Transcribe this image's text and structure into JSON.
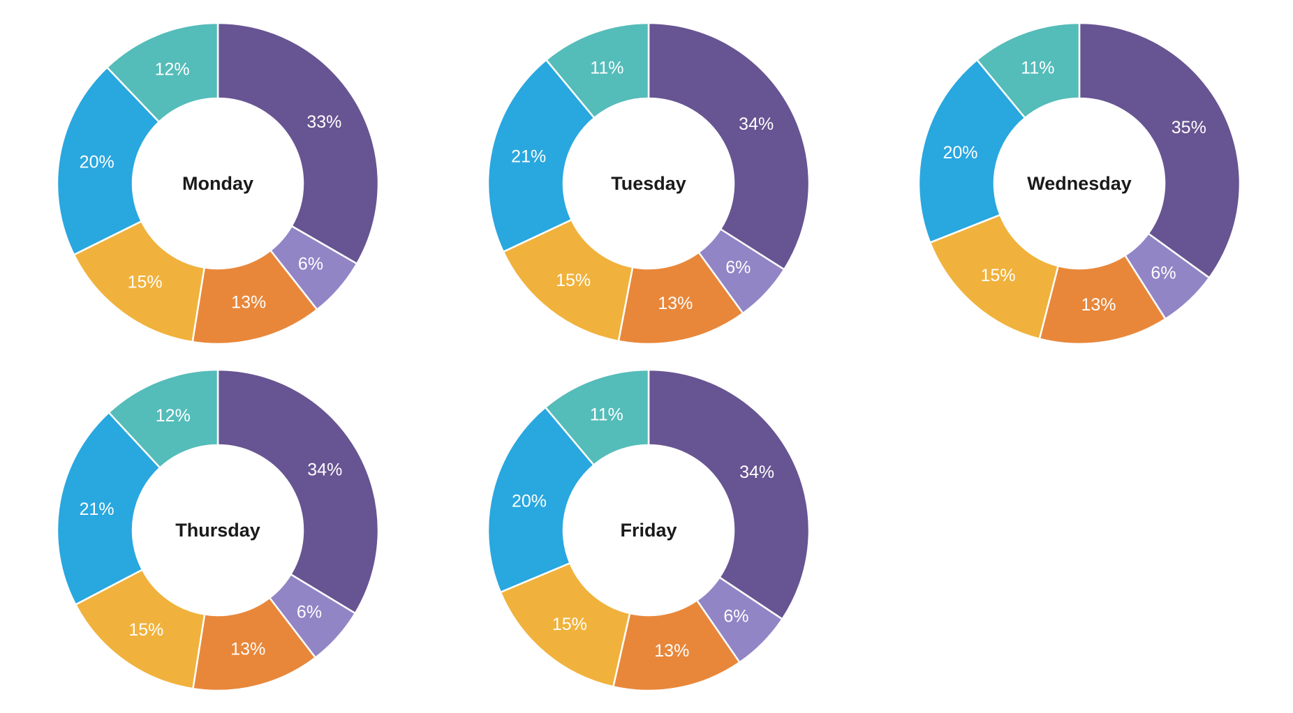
{
  "page": {
    "background": "#ffffff",
    "description_texts": []
  },
  "chart_data": [
    {
      "type": "pie",
      "subtype": "donut",
      "title": "Monday",
      "values": [
        33,
        6,
        13,
        15,
        20,
        12
      ],
      "labels": [
        "33%",
        "6%",
        "13%",
        "15%",
        "20%",
        "12%"
      ]
    },
    {
      "type": "pie",
      "subtype": "donut",
      "title": "Tuesday",
      "values": [
        34,
        6,
        13,
        15,
        21,
        11
      ],
      "labels": [
        "34%",
        "6%",
        "13%",
        "15%",
        "21%",
        "11%"
      ]
    },
    {
      "type": "pie",
      "subtype": "donut",
      "title": "Wednesday",
      "values": [
        35,
        6,
        13,
        15,
        20,
        11
      ],
      "labels": [
        "35%",
        "6%",
        "13%",
        "15%",
        "20%",
        "11%"
      ]
    },
    {
      "type": "pie",
      "subtype": "donut",
      "title": "Thursday",
      "values": [
        34,
        6,
        13,
        15,
        21,
        12
      ],
      "labels": [
        "34%",
        "6%",
        "13%",
        "15%",
        "21%",
        "12%"
      ]
    },
    {
      "type": "pie",
      "subtype": "donut",
      "title": "Friday",
      "values": [
        34,
        6,
        13,
        15,
        20,
        11
      ],
      "labels": [
        "34%",
        "6%",
        "13%",
        "15%",
        "20%",
        "11%"
      ]
    }
  ],
  "style": {
    "segment_colors": [
      "#675492",
      "#9285C6",
      "#E8873A",
      "#F0B23C",
      "#29A7DF",
      "#54BCB9"
    ],
    "segment_label_color": "#ffffff",
    "title_color": "#1a1a1a",
    "separator_color": "#ffffff",
    "start_angle_deg": 0,
    "direction": "clockwise",
    "legend": "none"
  }
}
